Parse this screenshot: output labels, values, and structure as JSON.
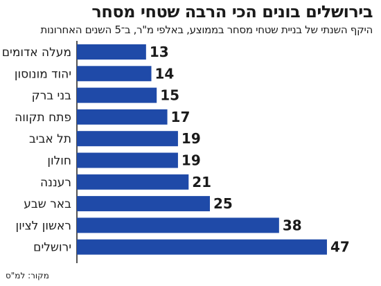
{
  "title": "בירושלים בונים הכי הרבה שטחי מסחר",
  "subtitle": "היקף השנתי של בניית שטחי מסחר בממוצע, באלפי מ\"ר, ב־5 השנים האחרונות",
  "source": "מקור: למ\"ס",
  "colors": {
    "bar": "#1f4aa8",
    "axis": "#1a1a1a"
  },
  "chart_data": {
    "type": "bar",
    "orientation": "horizontal",
    "categories": [
      "מעלה אדומים",
      "יהוד מונוסון",
      "בני ברק",
      "פתח תקווה",
      "תל אביב",
      "חולון",
      "רעננה",
      "באר שבע",
      "ראשון לציון",
      "ירושלים"
    ],
    "values": [
      13,
      14,
      15,
      17,
      19,
      19,
      21,
      25,
      38,
      47
    ],
    "value_labels": [
      "13",
      "14",
      "15",
      "17",
      "19",
      "19",
      "21",
      "25",
      "38",
      "47"
    ],
    "xlim": [
      0,
      50
    ]
  }
}
